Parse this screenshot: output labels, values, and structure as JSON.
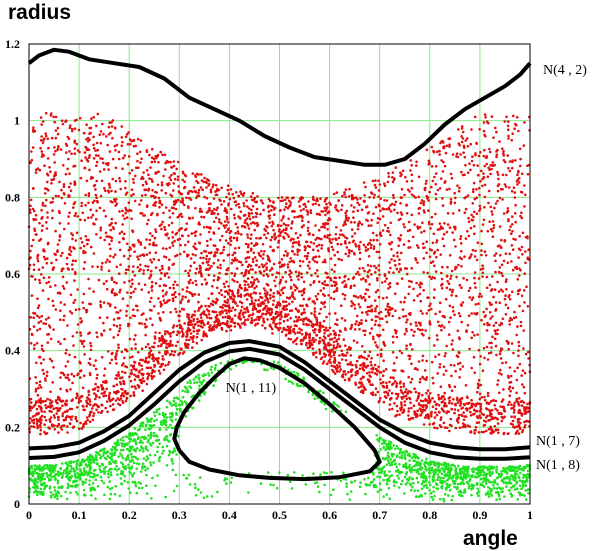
{
  "chart_data": {
    "type": "scatter",
    "title": "",
    "xlabel": "angle",
    "ylabel": "radius",
    "xlim": [
      0,
      1
    ],
    "ylim": [
      0,
      1.2
    ],
    "x_ticks": [
      "0",
      "0.1",
      "0.2",
      "0.3",
      "0.4",
      "0.5",
      "0.6",
      "0.7",
      "0.8",
      "0.9",
      "1"
    ],
    "y_ticks": [
      "0",
      "0.2",
      "0.4",
      "0.6",
      "0.8",
      "1",
      "1.2"
    ],
    "grid": true,
    "colors": {
      "grid": "#88e888",
      "red_points": "#e01010",
      "green_points": "#22e022",
      "curves": "#000000"
    },
    "curves": [
      {
        "label": "N(4 , 2)",
        "points": [
          [
            0,
            1.15
          ],
          [
            0.02,
            1.17
          ],
          [
            0.05,
            1.185
          ],
          [
            0.08,
            1.18
          ],
          [
            0.12,
            1.16
          ],
          [
            0.17,
            1.15
          ],
          [
            0.22,
            1.14
          ],
          [
            0.27,
            1.11
          ],
          [
            0.32,
            1.06
          ],
          [
            0.37,
            1.03
          ],
          [
            0.42,
            1.0
          ],
          [
            0.47,
            0.96
          ],
          [
            0.52,
            0.93
          ],
          [
            0.57,
            0.905
          ],
          [
            0.62,
            0.895
          ],
          [
            0.67,
            0.885
          ],
          [
            0.71,
            0.885
          ],
          [
            0.75,
            0.9
          ],
          [
            0.79,
            0.94
          ],
          [
            0.83,
            0.99
          ],
          [
            0.87,
            1.03
          ],
          [
            0.91,
            1.06
          ],
          [
            0.95,
            1.09
          ],
          [
            0.98,
            1.12
          ],
          [
            1,
            1.15
          ]
        ]
      },
      {
        "label": "N(1 , 7)",
        "points": [
          [
            0,
            0.145
          ],
          [
            0.05,
            0.148
          ],
          [
            0.1,
            0.16
          ],
          [
            0.15,
            0.19
          ],
          [
            0.2,
            0.23
          ],
          [
            0.25,
            0.29
          ],
          [
            0.3,
            0.35
          ],
          [
            0.35,
            0.395
          ],
          [
            0.4,
            0.42
          ],
          [
            0.44,
            0.425
          ],
          [
            0.5,
            0.41
          ],
          [
            0.55,
            0.37
          ],
          [
            0.6,
            0.32
          ],
          [
            0.65,
            0.27
          ],
          [
            0.7,
            0.22
          ],
          [
            0.75,
            0.185
          ],
          [
            0.8,
            0.16
          ],
          [
            0.85,
            0.148
          ],
          [
            0.9,
            0.143
          ],
          [
            0.95,
            0.143
          ],
          [
            1,
            0.148
          ]
        ]
      },
      {
        "label": "N(1 , 8)",
        "points": [
          [
            0,
            0.12
          ],
          [
            0.05,
            0.123
          ],
          [
            0.1,
            0.135
          ],
          [
            0.15,
            0.165
          ],
          [
            0.2,
            0.205
          ],
          [
            0.25,
            0.26
          ],
          [
            0.3,
            0.32
          ],
          [
            0.35,
            0.37
          ],
          [
            0.4,
            0.398
          ],
          [
            0.44,
            0.405
          ],
          [
            0.5,
            0.39
          ],
          [
            0.55,
            0.35
          ],
          [
            0.6,
            0.3
          ],
          [
            0.65,
            0.25
          ],
          [
            0.7,
            0.2
          ],
          [
            0.75,
            0.16
          ],
          [
            0.8,
            0.135
          ],
          [
            0.85,
            0.122
          ],
          [
            0.9,
            0.118
          ],
          [
            0.95,
            0.118
          ],
          [
            1,
            0.122
          ]
        ]
      },
      {
        "label": "N(1 , 11)",
        "points": [
          [
            0.3,
            0.14
          ],
          [
            0.29,
            0.17
          ],
          [
            0.295,
            0.2
          ],
          [
            0.31,
            0.24
          ],
          [
            0.34,
            0.29
          ],
          [
            0.37,
            0.33
          ],
          [
            0.4,
            0.365
          ],
          [
            0.43,
            0.38
          ],
          [
            0.46,
            0.375
          ],
          [
            0.5,
            0.355
          ],
          [
            0.55,
            0.315
          ],
          [
            0.6,
            0.26
          ],
          [
            0.65,
            0.2
          ],
          [
            0.69,
            0.14
          ],
          [
            0.7,
            0.11
          ],
          [
            0.68,
            0.085
          ],
          [
            0.62,
            0.07
          ],
          [
            0.55,
            0.065
          ],
          [
            0.48,
            0.068
          ],
          [
            0.42,
            0.075
          ],
          [
            0.36,
            0.09
          ],
          [
            0.32,
            0.11
          ],
          [
            0.3,
            0.14
          ]
        ]
      }
    ]
  }
}
